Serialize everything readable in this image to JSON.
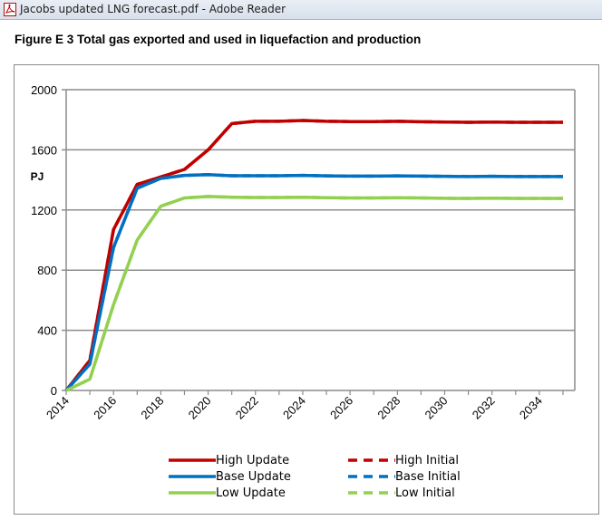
{
  "window": {
    "title": "Jacobs updated LNG forecast.pdf - Adobe Reader",
    "icon": "pdf-document-icon"
  },
  "figure": {
    "title": "Figure E 3 Total gas exported and used in liquefaction and production"
  },
  "chart_data": {
    "type": "line",
    "ylabel": "PJ",
    "xlabel": "",
    "ylim": [
      0,
      2000
    ],
    "yticks": [
      0,
      400,
      800,
      1200,
      1600,
      2000
    ],
    "xlim": [
      2014,
      2035.5
    ],
    "xticks": [
      "2014",
      "2016",
      "2018",
      "2020",
      "2022",
      "2024",
      "2026",
      "2028",
      "2030",
      "2032",
      "2034"
    ],
    "grid": "horizontal",
    "legend_position": "bottom",
    "x": [
      2014,
      2015,
      2016,
      2017,
      2018,
      2019,
      2020,
      2021,
      2022,
      2023,
      2024,
      2025,
      2026,
      2027,
      2028,
      2029,
      2030,
      2031,
      2032,
      2033,
      2034,
      2035
    ],
    "series": [
      {
        "name": "High Update",
        "color": "#c00000",
        "style": "solid",
        "values": [
          0,
          200,
          1070,
          1370,
          1420,
          1470,
          1600,
          1775,
          1790,
          1790,
          1795,
          1790,
          1788,
          1788,
          1790,
          1787,
          1785,
          1783,
          1785,
          1783,
          1783,
          1783
        ]
      },
      {
        "name": "Base Update",
        "color": "#0070c0",
        "style": "solid",
        "values": [
          0,
          175,
          950,
          1345,
          1410,
          1430,
          1435,
          1428,
          1428,
          1428,
          1430,
          1427,
          1425,
          1425,
          1427,
          1425,
          1424,
          1422,
          1424,
          1422,
          1422,
          1422
        ]
      },
      {
        "name": "Low Update",
        "color": "#92d050",
        "style": "solid",
        "values": [
          0,
          75,
          570,
          1000,
          1225,
          1280,
          1290,
          1285,
          1283,
          1283,
          1285,
          1282,
          1280,
          1280,
          1282,
          1280,
          1278,
          1277,
          1279,
          1277,
          1277,
          1277
        ]
      },
      {
        "name": "High Initial",
        "color": "#c00000",
        "style": "dashed",
        "values": [
          0,
          200,
          1070,
          1370,
          1420,
          1470,
          1600,
          1775,
          1790,
          1790,
          1795,
          1790,
          1788,
          1788,
          1790,
          1787,
          1785,
          1783,
          1785,
          1783,
          1783,
          1783
        ]
      },
      {
        "name": "Base Initial",
        "color": "#0070c0",
        "style": "dashed",
        "values": [
          0,
          175,
          950,
          1345,
          1410,
          1430,
          1435,
          1428,
          1428,
          1428,
          1430,
          1427,
          1425,
          1425,
          1427,
          1425,
          1424,
          1422,
          1424,
          1422,
          1422,
          1422
        ]
      },
      {
        "name": "Low Initial",
        "color": "#92d050",
        "style": "dashed",
        "values": [
          0,
          75,
          570,
          1000,
          1225,
          1280,
          1290,
          1285,
          1283,
          1283,
          1285,
          1282,
          1280,
          1280,
          1282,
          1280,
          1278,
          1277,
          1279,
          1277,
          1277,
          1277
        ]
      }
    ]
  }
}
